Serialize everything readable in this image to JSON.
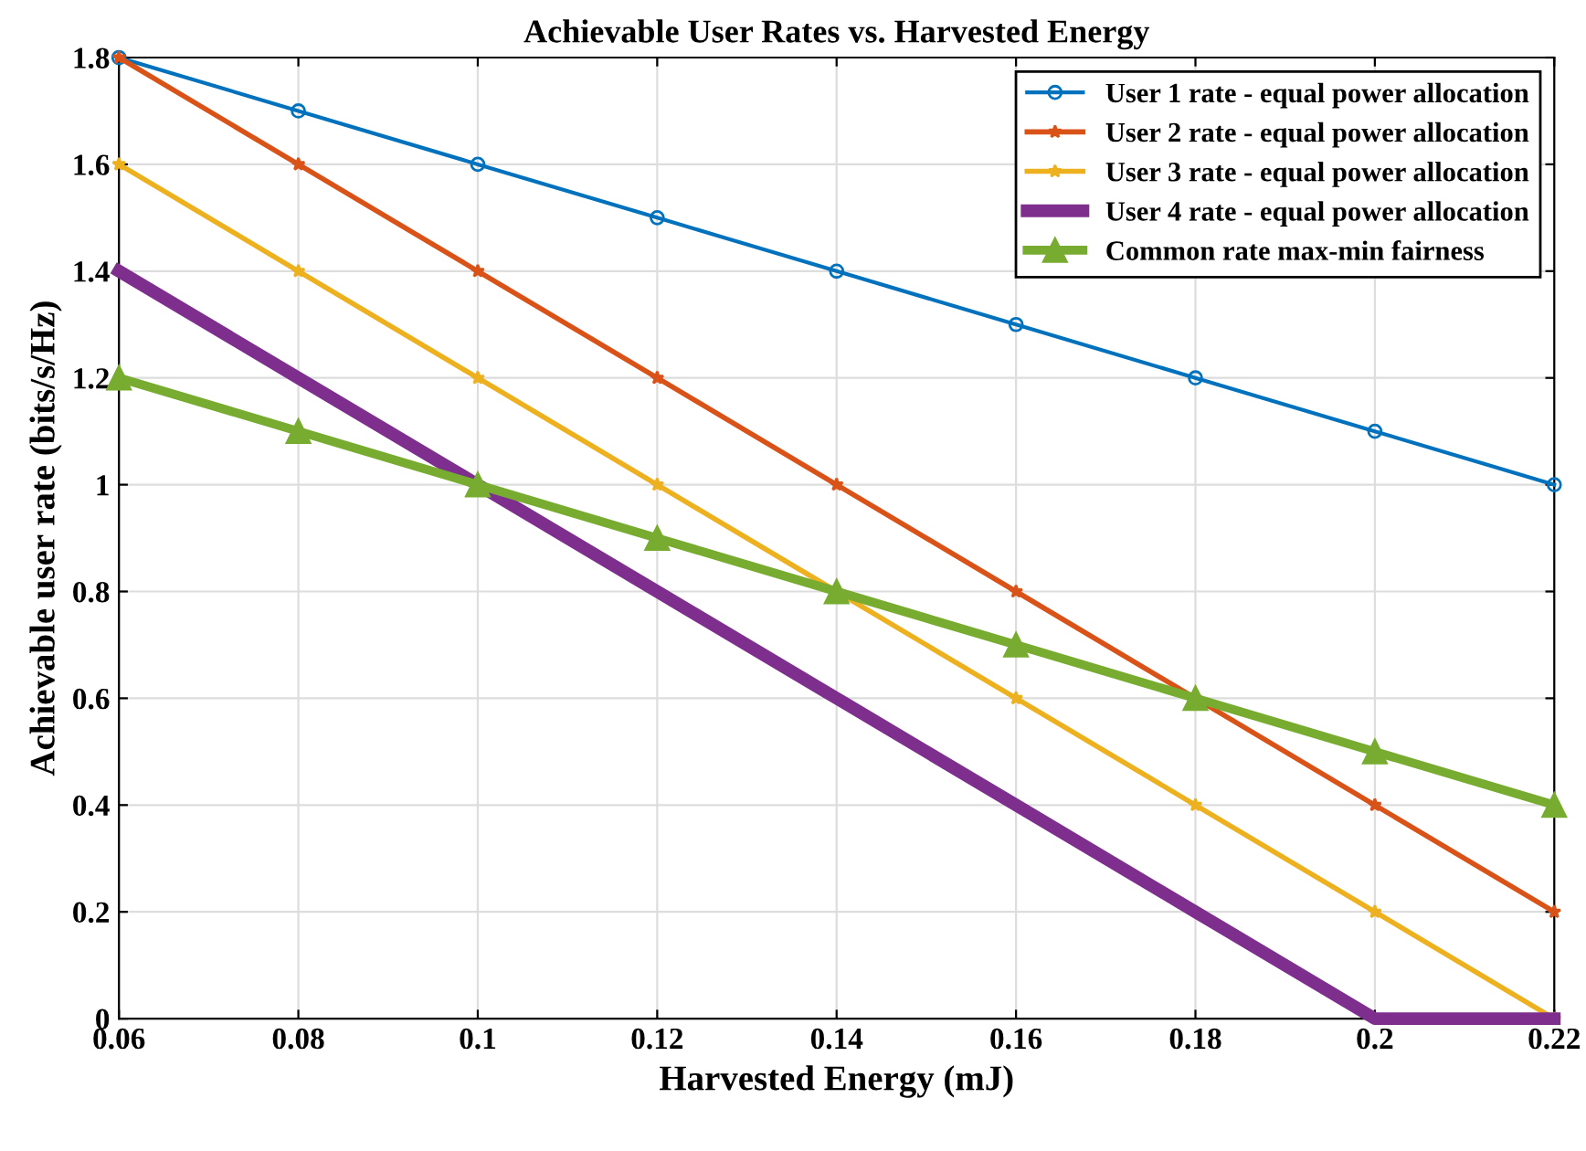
{
  "chart_data": {
    "type": "line",
    "title": "Achievable User Rates vs. Harvested Energy",
    "xlabel": "Harvested Energy (mJ)",
    "ylabel": "Achievable user rate (bits/s/Hz)",
    "x": [
      0.06,
      0.08,
      0.1,
      0.12,
      0.14,
      0.16,
      0.18,
      0.2,
      0.22
    ],
    "series": [
      {
        "name": "User 1 rate - equal power allocation",
        "color": "#0072bd",
        "marker": "circle",
        "values": [
          1.8,
          1.7,
          1.6,
          1.5,
          1.4,
          1.3,
          1.2,
          1.1,
          1.0
        ]
      },
      {
        "name": "User 2 rate - equal power allocation",
        "color": "#d95319",
        "marker": "star",
        "values": [
          1.8,
          1.6,
          1.4,
          1.2,
          1.0,
          0.8,
          0.6,
          0.4,
          0.2
        ]
      },
      {
        "name": "User 3 rate - equal power allocation",
        "color": "#edb120",
        "marker": "star",
        "values": [
          1.6,
          1.4,
          1.2,
          1.0,
          0.8,
          0.6,
          0.4,
          0.2,
          0
        ]
      },
      {
        "name": "User 4 rate - equal power allocation",
        "color": "#7e2f8e",
        "marker": "none",
        "values": [
          1.4,
          1.2,
          1.0,
          0.8,
          0.6,
          0.4,
          0.2,
          0,
          0
        ]
      },
      {
        "name": "Common rate max-min fairness",
        "color": "#77ac30",
        "marker": "triangle",
        "values": [
          1.2,
          1.1,
          1.0,
          0.9,
          0.8,
          0.7,
          0.6,
          0.5,
          0.4
        ]
      }
    ],
    "xlim": [
      0.06,
      0.22
    ],
    "ylim": [
      0,
      1.8
    ],
    "xticks": [
      0.06,
      0.08,
      0.1,
      0.12,
      0.14,
      0.16,
      0.18,
      0.2,
      0.22
    ],
    "yticks": [
      0,
      0.2,
      0.4,
      0.6,
      0.8,
      1,
      1.2,
      1.4,
      1.6,
      1.8
    ],
    "grid": true,
    "legend": "top right",
    "line_style": "solid"
  }
}
